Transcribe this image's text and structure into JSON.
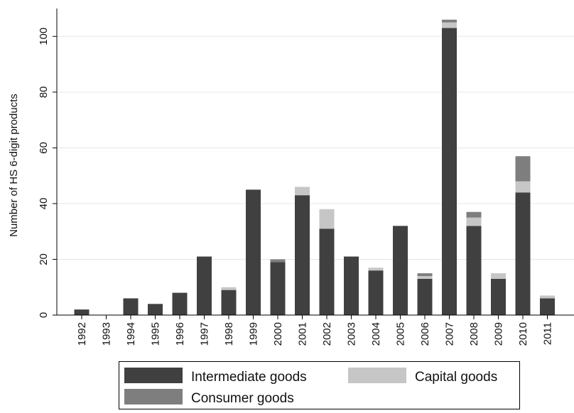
{
  "chart_data": {
    "type": "bar",
    "stacked": true,
    "title": "",
    "xlabel": "",
    "ylabel": "Number of HS 6-digit products",
    "ylim": [
      0,
      110
    ],
    "yticks": [
      0,
      20,
      40,
      60,
      80,
      100
    ],
    "grid": true,
    "legend_position": "bottom",
    "categories": [
      "1992",
      "1993",
      "1994",
      "1995",
      "1996",
      "1997",
      "1998",
      "1999",
      "2000",
      "2001",
      "2002",
      "2003",
      "2004",
      "2005",
      "2006",
      "2007",
      "2008",
      "2009",
      "2010",
      "2011"
    ],
    "series": [
      {
        "name": "Intermediate goods",
        "color": "#404040",
        "values": [
          2,
          0,
          6,
          4,
          8,
          21,
          9,
          45,
          19,
          43,
          31,
          21,
          16,
          32,
          13,
          103,
          32,
          13,
          44,
          6
        ]
      },
      {
        "name": "Capital goods",
        "color": "#c6c6c6",
        "values": [
          0,
          0,
          0,
          0,
          0,
          0,
          1,
          0,
          0,
          3,
          7,
          0,
          1,
          0,
          1,
          2,
          3,
          2,
          4,
          1
        ]
      },
      {
        "name": "Consumer goods",
        "color": "#7e7e7e",
        "values": [
          0,
          0,
          0,
          0,
          0,
          0,
          0,
          0,
          1,
          0,
          0,
          0,
          0,
          0,
          1,
          1,
          2,
          0,
          9,
          0
        ]
      }
    ],
    "legend": {
      "items": [
        {
          "label": "Intermediate goods",
          "color": "#404040"
        },
        {
          "label": "Capital goods",
          "color": "#c6c6c6"
        },
        {
          "label": "Consumer goods",
          "color": "#7e7e7e"
        }
      ]
    }
  }
}
